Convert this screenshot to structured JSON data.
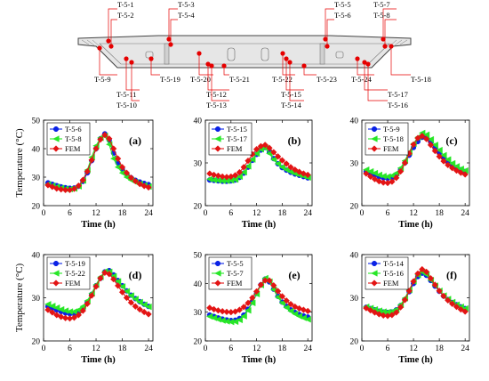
{
  "colors": {
    "blue": "#0a22e6",
    "green": "#27e627",
    "red": "#e31414",
    "sensor": "#e60000",
    "leader": "#e60000",
    "section_fill": "#e6e6e6",
    "section_line": "#444444"
  },
  "diagram": {
    "labels": [
      "T-5-1",
      "T-5-2",
      "T-5-3",
      "T-5-4",
      "T-5-5",
      "T-5-6",
      "T-5-7",
      "T-5-8",
      "T-5-9",
      "T-5-11",
      "T-5-10",
      "T-5-19",
      "T-5-20",
      "T-5-12",
      "T-5-13",
      "T-5-21",
      "T-5-22",
      "T-5-15",
      "T-5-14",
      "T-5-23",
      "T-5-24",
      "T-5-17",
      "T-5-16",
      "T-5-18"
    ]
  },
  "chart_data": [
    {
      "type": "line",
      "panel_label": "(a)",
      "xlabel": "Time (h)",
      "ylabel": "Temperature (°C)",
      "xlim": [
        0,
        25
      ],
      "ylim": [
        20,
        50
      ],
      "xticks": [
        0,
        6,
        12,
        18,
        24
      ],
      "yticks": [
        20,
        30,
        40,
        50
      ],
      "legend_position": "top-left",
      "x": [
        1,
        2,
        3,
        4,
        5,
        6,
        7,
        8,
        9,
        10,
        11,
        12,
        13,
        14,
        15,
        16,
        17,
        18,
        19,
        20,
        21,
        22,
        23,
        24
      ],
      "series": [
        {
          "name": "T-5-6",
          "marker": "circle",
          "color": "blue",
          "values": [
            28.0,
            27.5,
            27.0,
            26.6,
            26.3,
            26.1,
            26.2,
            26.8,
            28.5,
            31.5,
            35.8,
            40.0,
            43.5,
            45.2,
            43.0,
            38.5,
            35.0,
            32.8,
            31.0,
            29.8,
            28.9,
            28.3,
            27.8,
            27.4
          ]
        },
        {
          "name": "T-5-8",
          "marker": "triangle-left",
          "color": "green",
          "values": [
            27.5,
            27.0,
            26.6,
            26.2,
            25.9,
            25.8,
            26.0,
            26.8,
            28.8,
            32.5,
            37.0,
            41.0,
            43.8,
            44.5,
            41.5,
            36.5,
            33.5,
            31.5,
            30.0,
            29.0,
            28.2,
            27.6,
            27.1,
            26.7
          ]
        },
        {
          "name": "FEM",
          "marker": "diamond",
          "color": "red",
          "values": [
            27.2,
            26.6,
            26.0,
            25.7,
            25.5,
            25.5,
            25.9,
            27.0,
            29.0,
            32.0,
            36.0,
            40.0,
            43.2,
            44.8,
            43.5,
            40.0,
            36.5,
            33.5,
            31.5,
            29.8,
            28.6,
            27.6,
            26.9,
            26.4
          ]
        }
      ]
    },
    {
      "type": "line",
      "panel_label": "(b)",
      "xlabel": "Time (h)",
      "ylabel": "",
      "xlim": [
        0,
        25
      ],
      "ylim": [
        20,
        40
      ],
      "xticks": [
        0,
        6,
        12,
        18,
        24
      ],
      "yticks": [
        20,
        30,
        40
      ],
      "legend_position": "top-left",
      "x": [
        1,
        2,
        3,
        4,
        5,
        6,
        7,
        8,
        9,
        10,
        11,
        12,
        13,
        14,
        15,
        16,
        17,
        18,
        19,
        20,
        21,
        22,
        23,
        24
      ],
      "series": [
        {
          "name": "T-5-15",
          "marker": "circle",
          "color": "blue",
          "values": [
            26.0,
            25.9,
            25.8,
            25.7,
            25.7,
            25.8,
            26.0,
            26.6,
            27.6,
            29.0,
            30.6,
            32.0,
            33.0,
            33.6,
            32.5,
            31.0,
            29.8,
            28.9,
            28.3,
            27.8,
            27.4,
            27.1,
            26.8,
            26.5
          ]
        },
        {
          "name": "T-5-17",
          "marker": "triangle-left",
          "color": "green",
          "values": [
            26.2,
            26.0,
            25.9,
            25.8,
            25.8,
            25.9,
            26.1,
            26.8,
            27.8,
            29.2,
            30.8,
            32.2,
            33.2,
            33.5,
            32.2,
            30.8,
            29.8,
            29.0,
            28.4,
            27.9,
            27.5,
            27.2,
            26.9,
            26.6
          ]
        },
        {
          "name": "FEM",
          "marker": "diamond",
          "color": "red",
          "values": [
            27.5,
            27.2,
            27.0,
            26.8,
            26.7,
            26.8,
            27.1,
            27.8,
            29.0,
            30.5,
            32.0,
            33.2,
            33.9,
            34.2,
            33.5,
            32.5,
            31.5,
            30.6,
            29.8,
            29.0,
            28.4,
            27.9,
            27.5,
            27.2
          ]
        }
      ]
    },
    {
      "type": "line",
      "panel_label": "(c)",
      "xlabel": "Time (h)",
      "ylabel": "",
      "xlim": [
        0,
        25
      ],
      "ylim": [
        20,
        40
      ],
      "xticks": [
        0,
        6,
        12,
        18,
        24
      ],
      "yticks": [
        20,
        30,
        40
      ],
      "legend_position": "top-left",
      "x": [
        1,
        2,
        3,
        4,
        5,
        6,
        7,
        8,
        9,
        10,
        11,
        12,
        13,
        14,
        15,
        16,
        17,
        18,
        19,
        20,
        21,
        22,
        23,
        24
      ],
      "series": [
        {
          "name": "T-5-9",
          "marker": "circle",
          "color": "blue",
          "values": [
            28.0,
            27.6,
            27.2,
            26.8,
            26.5,
            26.4,
            26.6,
            27.2,
            28.4,
            30.0,
            31.8,
            33.6,
            35.0,
            36.0,
            35.8,
            34.8,
            33.5,
            32.3,
            31.2,
            30.3,
            29.5,
            28.9,
            28.4,
            28.0
          ]
        },
        {
          "name": "T-5-18",
          "marker": "triangle-left",
          "color": "green",
          "values": [
            28.4,
            28.0,
            27.6,
            27.2,
            26.9,
            26.8,
            27.0,
            27.6,
            28.8,
            30.5,
            32.5,
            34.5,
            36.0,
            37.0,
            36.6,
            35.5,
            34.2,
            33.0,
            31.8,
            30.8,
            29.9,
            29.2,
            28.6,
            28.2
          ]
        },
        {
          "name": "FEM",
          "marker": "diamond",
          "color": "red",
          "values": [
            27.5,
            26.8,
            26.2,
            25.7,
            25.4,
            25.3,
            25.6,
            26.5,
            28.0,
            30.0,
            32.2,
            34.3,
            35.8,
            36.3,
            35.6,
            34.2,
            32.8,
            31.5,
            30.4,
            29.5,
            28.8,
            28.2,
            27.7,
            27.3
          ]
        }
      ]
    },
    {
      "type": "line",
      "panel_label": "(d)",
      "xlabel": "Time (h)",
      "ylabel": "Temperature (°C)",
      "xlim": [
        0,
        25
      ],
      "ylim": [
        20,
        40
      ],
      "xticks": [
        0,
        6,
        12,
        18,
        24
      ],
      "yticks": [
        20,
        30,
        40
      ],
      "legend_position": "top-left",
      "x": [
        1,
        2,
        3,
        4,
        5,
        6,
        7,
        8,
        9,
        10,
        11,
        12,
        13,
        14,
        15,
        16,
        17,
        18,
        19,
        20,
        21,
        22,
        23,
        24
      ],
      "series": [
        {
          "name": "T-5-19",
          "marker": "circle",
          "color": "blue",
          "values": [
            28.0,
            27.6,
            27.2,
            26.8,
            26.5,
            26.3,
            26.3,
            26.7,
            27.6,
            29.0,
            30.8,
            32.8,
            34.5,
            36.0,
            36.3,
            35.3,
            34.0,
            32.8,
            31.6,
            30.6,
            29.8,
            29.1,
            28.5,
            28.0
          ]
        },
        {
          "name": "T-5-22",
          "marker": "triangle-left",
          "color": "green",
          "values": [
            28.5,
            28.1,
            27.7,
            27.3,
            27.0,
            26.8,
            26.8,
            27.2,
            28.0,
            29.3,
            31.0,
            33.0,
            34.8,
            36.1,
            36.0,
            35.0,
            33.8,
            32.6,
            31.5,
            30.5,
            29.7,
            29.0,
            28.4,
            27.9
          ]
        },
        {
          "name": "FEM",
          "marker": "diamond",
          "color": "red",
          "values": [
            27.2,
            26.6,
            26.0,
            25.6,
            25.3,
            25.2,
            25.4,
            26.0,
            27.0,
            28.6,
            30.5,
            32.6,
            34.5,
            35.8,
            35.5,
            34.3,
            32.8,
            31.3,
            30.0,
            28.9,
            28.0,
            27.3,
            26.7,
            26.2
          ]
        }
      ]
    },
    {
      "type": "line",
      "panel_label": "(e)",
      "xlabel": "Time (h)",
      "ylabel": "",
      "xlim": [
        0,
        25
      ],
      "ylim": [
        20,
        50
      ],
      "xticks": [
        0,
        6,
        12,
        18,
        24
      ],
      "yticks": [
        20,
        30,
        40,
        50
      ],
      "legend_position": "top-left",
      "x": [
        1,
        2,
        3,
        4,
        5,
        6,
        7,
        8,
        9,
        10,
        11,
        12,
        13,
        14,
        15,
        16,
        17,
        18,
        19,
        20,
        21,
        22,
        23,
        24
      ],
      "series": [
        {
          "name": "T-5-5",
          "marker": "circle",
          "color": "blue",
          "values": [
            29.0,
            28.5,
            28.0,
            27.6,
            27.3,
            27.1,
            27.2,
            27.8,
            29.0,
            31.0,
            33.5,
            36.5,
            39.5,
            41.5,
            40.5,
            38.0,
            35.5,
            33.5,
            32.0,
            30.8,
            29.9,
            29.2,
            28.7,
            28.3
          ]
        },
        {
          "name": "T-5-7",
          "marker": "triangle-left",
          "color": "green",
          "values": [
            28.5,
            28.0,
            27.5,
            27.1,
            26.8,
            26.6,
            26.7,
            27.3,
            28.6,
            30.6,
            33.2,
            36.3,
            39.4,
            41.8,
            40.6,
            37.8,
            35.2,
            33.2,
            31.6,
            30.4,
            29.4,
            28.6,
            28.0,
            27.5
          ]
        },
        {
          "name": "FEM",
          "marker": "diamond",
          "color": "red",
          "values": [
            31.5,
            31.0,
            30.6,
            30.3,
            30.1,
            30.0,
            30.2,
            30.8,
            31.8,
            33.2,
            35.0,
            37.2,
            39.5,
            41.0,
            41.0,
            39.3,
            37.3,
            35.5,
            34.0,
            32.8,
            31.9,
            31.3,
            30.8,
            30.4
          ]
        }
      ]
    },
    {
      "type": "line",
      "panel_label": "(f)",
      "xlabel": "Time (h)",
      "ylabel": "",
      "xlim": [
        0,
        25
      ],
      "ylim": [
        20,
        40
      ],
      "xticks": [
        0,
        6,
        12,
        18,
        24
      ],
      "yticks": [
        20,
        30,
        40
      ],
      "legend_position": "top-left",
      "x": [
        1,
        2,
        3,
        4,
        5,
        6,
        7,
        8,
        9,
        10,
        11,
        12,
        13,
        14,
        15,
        16,
        17,
        18,
        19,
        20,
        21,
        22,
        23,
        24
      ],
      "series": [
        {
          "name": "T-5-14",
          "marker": "circle",
          "color": "blue",
          "values": [
            27.8,
            27.5,
            27.2,
            26.9,
            26.7,
            26.6,
            26.7,
            27.2,
            28.2,
            29.6,
            31.4,
            33.3,
            34.9,
            35.7,
            35.2,
            34.0,
            32.7,
            31.5,
            30.4,
            29.6,
            28.9,
            28.4,
            27.9,
            27.5
          ]
        },
        {
          "name": "T-5-16",
          "marker": "triangle-left",
          "color": "green",
          "values": [
            27.9,
            27.6,
            27.3,
            27.0,
            26.8,
            26.7,
            26.8,
            27.3,
            28.4,
            29.9,
            31.8,
            33.8,
            35.3,
            36.0,
            35.4,
            34.1,
            32.8,
            31.6,
            30.5,
            29.7,
            29.0,
            28.4,
            27.9,
            27.5
          ]
        },
        {
          "name": "FEM",
          "marker": "diamond",
          "color": "red",
          "values": [
            27.6,
            27.1,
            26.6,
            26.2,
            25.9,
            25.8,
            26.0,
            26.6,
            27.8,
            29.5,
            31.6,
            33.8,
            35.6,
            36.6,
            36.0,
            34.5,
            33.0,
            31.6,
            30.4,
            29.4,
            28.6,
            27.9,
            27.3,
            26.8
          ]
        }
      ]
    }
  ]
}
